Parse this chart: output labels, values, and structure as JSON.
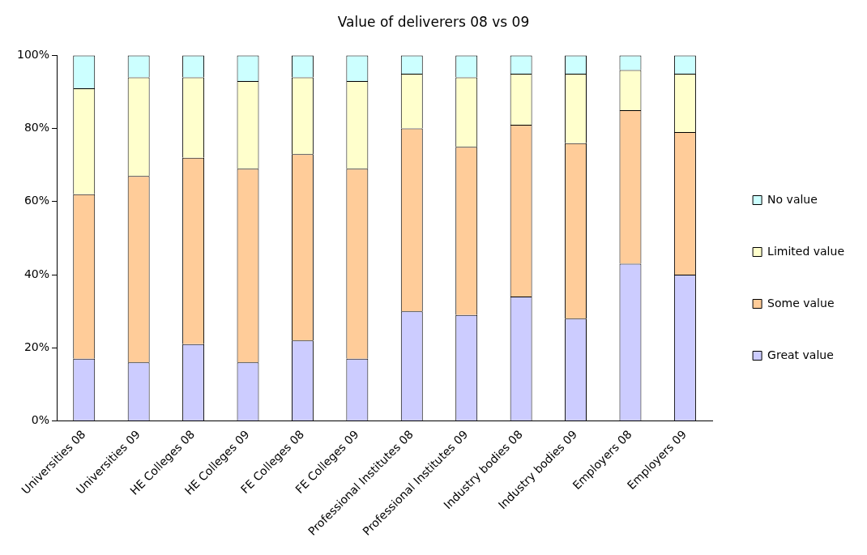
{
  "chart_data": {
    "type": "bar",
    "title": "Value of deliverers 08 vs 09",
    "stacked": true,
    "categories": [
      "Universities 08",
      "Universities 09",
      "HE Colleges 08",
      "HE Colleges 09",
      "FE Colleges 08",
      "FE Colleges 09",
      "Professional Institutes 08",
      "Professional Institutes 09",
      "Industry bodies 08",
      "Industry bodies 09",
      "Employers 08",
      "Employers 09"
    ],
    "series": [
      {
        "name": "Great value",
        "color": "#ccccff",
        "values": [
          17,
          16,
          21,
          16,
          22,
          17,
          30,
          29,
          34,
          28,
          43,
          40
        ]
      },
      {
        "name": "Some value",
        "color": "#ffcc99",
        "values": [
          45,
          51,
          51,
          53,
          51,
          52,
          50,
          46,
          47,
          48,
          42,
          39
        ]
      },
      {
        "name": "Limited value",
        "color": "#ffffcc",
        "values": [
          29,
          27,
          22,
          24,
          21,
          24,
          15,
          19,
          14,
          19,
          11,
          16
        ]
      },
      {
        "name": "No value",
        "color": "#ccffff",
        "values": [
          9,
          6,
          6,
          7,
          6,
          7,
          5,
          6,
          5,
          5,
          4,
          5
        ]
      }
    ],
    "ylim": [
      0,
      100
    ],
    "yticks": [
      {
        "value": 0,
        "label": "0%"
      },
      {
        "value": 20,
        "label": "20%"
      },
      {
        "value": 40,
        "label": "40%"
      },
      {
        "value": 60,
        "label": "60%"
      },
      {
        "value": 80,
        "label": "80%"
      },
      {
        "value": 100,
        "label": "100%"
      }
    ],
    "grid": false,
    "legend": "right"
  }
}
